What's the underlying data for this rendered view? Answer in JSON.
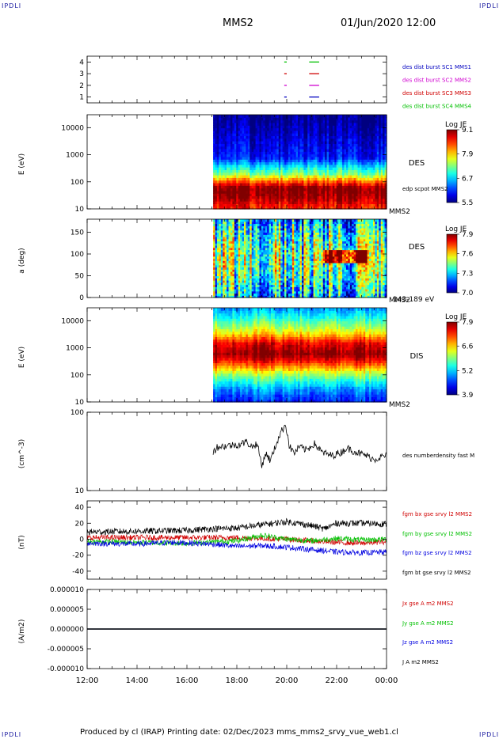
{
  "corner_label": "IPDLI",
  "header": {
    "spacecraft": "MMS2",
    "datetime": "01/Jun/2020 12:00"
  },
  "footer": {
    "text": "Produced by cl (IRAP)   Printing date: 02/Dec/2023   mms_mms2_srvy_vue_web1.cl"
  },
  "colors": {
    "mms1": "#0000c0",
    "mms2": "#d000d0",
    "mms3": "#d00000",
    "mms4": "#00c000",
    "bx": "#d00000",
    "by": "#00c000",
    "bz": "#0000e0",
    "bt": "#000000"
  },
  "chart_data": {
    "type": "stacked-timeseries",
    "x_ticks": [
      "12:00",
      "14:00",
      "16:00",
      "18:00",
      "20:00",
      "22:00",
      "00:00"
    ],
    "xlim_hours": [
      12,
      24
    ],
    "panels": [
      {
        "id": "burst",
        "type": "scatter",
        "y_ticks": [
          "1",
          "2",
          "3",
          "4"
        ],
        "ylim": [
          0.5,
          4.5
        ],
        "legend": [
          "des dist burst SC1 MMS1",
          "des dist burst SC2 MMS2",
          "des dist burst SC3 MMS3",
          "des dist burst SC4 MMS4"
        ],
        "series": [
          {
            "name": "des dist burst SC1 MMS1",
            "level": 1,
            "color": "#0000c0",
            "intervals": [
              [
                19.9,
                20.0
              ],
              [
                20.9,
                21.3
              ]
            ]
          },
          {
            "name": "des dist burst SC2 MMS2",
            "level": 2,
            "color": "#d000d0",
            "intervals": [
              [
                19.9,
                20.0
              ],
              [
                20.9,
                21.3
              ]
            ]
          },
          {
            "name": "des dist burst SC3 MMS3",
            "level": 3,
            "color": "#d00000",
            "intervals": [
              [
                19.9,
                20.0
              ],
              [
                20.9,
                21.3
              ]
            ]
          },
          {
            "name": "des dist burst SC4 MMS4",
            "level": 4,
            "color": "#00c000",
            "intervals": [
              [
                19.9,
                20.0
              ],
              [
                20.9,
                21.3
              ]
            ]
          }
        ]
      },
      {
        "id": "des-energy",
        "type": "heatmap",
        "ylabel": "E (eV)",
        "y_ticks": [
          "10",
          "100",
          "1000",
          "10000"
        ],
        "ylim_log": [
          10,
          30000
        ],
        "data_start_hour": 17.05,
        "label": "DES",
        "sublabel": "edp scpot MMS2",
        "instrument": "MMS2",
        "colorbar": {
          "title": "Log JE",
          "ticks": [
            "9.1",
            "7.9",
            "6.7",
            "5.5"
          ],
          "range": [
            5.5,
            9.1
          ]
        },
        "profile": [
          [
            10,
            8.5
          ],
          [
            30,
            9.0
          ],
          [
            60,
            9.1
          ],
          [
            100,
            8.4
          ],
          [
            200,
            7.3
          ],
          [
            400,
            6.7
          ],
          [
            800,
            6.0
          ],
          [
            30000,
            5.5
          ]
        ]
      },
      {
        "id": "des-pitch",
        "type": "heatmap",
        "ylabel": "a (deg)",
        "y_ticks": [
          "0",
          "50",
          "100",
          "150"
        ],
        "ylim": [
          0,
          180
        ],
        "data_start_hour": 17.05,
        "label": "DES",
        "instrument": "MMS2",
        "energy_band": "143-189 eV",
        "colorbar": {
          "title": "Log JE",
          "ticks": [
            "7.9",
            "7.6",
            "7.3",
            "7.0"
          ],
          "range": [
            7.0,
            7.9
          ]
        }
      },
      {
        "id": "dis-energy",
        "type": "heatmap",
        "ylabel": "E (eV)",
        "y_ticks": [
          "10",
          "100",
          "1000",
          "10000"
        ],
        "ylim_log": [
          10,
          30000
        ],
        "data_start_hour": 17.05,
        "label": "DIS",
        "instrument": "MMS2",
        "colorbar": {
          "title": "Log JE",
          "ticks": [
            "7.9",
            "6.6",
            "5.2",
            "3.9"
          ],
          "range": [
            3.9,
            7.9
          ]
        },
        "profile": [
          [
            10,
            4.5
          ],
          [
            30,
            5.0
          ],
          [
            100,
            6.0
          ],
          [
            300,
            7.3
          ],
          [
            600,
            7.9
          ],
          [
            1500,
            7.5
          ],
          [
            4000,
            6.4
          ],
          [
            12000,
            5.6
          ],
          [
            30000,
            5.0
          ]
        ]
      },
      {
        "id": "density",
        "type": "line",
        "ylabel": "(cm^-3)",
        "y_ticks": [
          "10",
          "100"
        ],
        "ylim_log": [
          10,
          100
        ],
        "legend": [
          "des numberdensity fast M"
        ],
        "series": [
          {
            "name": "des numberdensity fast M",
            "color": "#000000",
            "points": [
              [
                17.05,
                31
              ],
              [
                17.2,
                36
              ],
              [
                17.5,
                37
              ],
              [
                17.8,
                38
              ],
              [
                18.1,
                39
              ],
              [
                18.4,
                42
              ],
              [
                18.6,
                36
              ],
              [
                18.8,
                40
              ],
              [
                19.0,
                20
              ],
              [
                19.15,
                30
              ],
              [
                19.35,
                24
              ],
              [
                19.5,
                33
              ],
              [
                19.8,
                58
              ],
              [
                19.95,
                70
              ],
              [
                20.1,
                37
              ],
              [
                20.3,
                30
              ],
              [
                20.5,
                36
              ],
              [
                20.8,
                33
              ],
              [
                21.1,
                40
              ],
              [
                21.4,
                31
              ],
              [
                21.8,
                28
              ],
              [
                22.2,
                31
              ],
              [
                22.4,
                35
              ],
              [
                22.6,
                33
              ],
              [
                22.9,
                30
              ],
              [
                23.2,
                28
              ],
              [
                23.5,
                25
              ],
              [
                23.8,
                27
              ],
              [
                24.0,
                28
              ]
            ]
          }
        ]
      },
      {
        "id": "fgm",
        "type": "line",
        "ylabel": "(nT)",
        "y_ticks": [
          "-40",
          "-20",
          "0",
          "20",
          "40"
        ],
        "ylim": [
          -50,
          48
        ],
        "legend": [
          "fgm bx gse srvy l2 MMS2",
          "fgm by gse srvy l2 MMS2",
          "fgm bz gse srvy l2 MMS2",
          "fgm bt gse srvy l2 MMS2"
        ],
        "series": [
          {
            "name": "fgm bx gse srvy l2 MMS2",
            "color": "#d00000",
            "points": [
              [
                12,
                2
              ],
              [
                15,
                2
              ],
              [
                18,
                2
              ],
              [
                19,
                1
              ],
              [
                20,
                0
              ],
              [
                21,
                -2
              ],
              [
                22,
                -4
              ],
              [
                23,
                -5
              ],
              [
                24,
                -3
              ]
            ]
          },
          {
            "name": "fgm by gse srvy l2 MMS2",
            "color": "#00c000",
            "points": [
              [
                12,
                -3
              ],
              [
                14,
                -4
              ],
              [
                16,
                -5
              ],
              [
                18,
                -2
              ],
              [
                19,
                5
              ],
              [
                20,
                0
              ],
              [
                21,
                -2
              ],
              [
                22,
                1
              ],
              [
                23,
                -1
              ],
              [
                24,
                0
              ]
            ]
          },
          {
            "name": "fgm bz gse srvy l2 MMS2",
            "color": "#0000e0",
            "points": [
              [
                12,
                -5
              ],
              [
                14,
                -6
              ],
              [
                15.5,
                -4
              ],
              [
                17,
                -6
              ],
              [
                18,
                -9
              ],
              [
                19,
                -8
              ],
              [
                20,
                -10
              ],
              [
                21,
                -13
              ],
              [
                22,
                -16
              ],
              [
                23,
                -17
              ],
              [
                24,
                -16
              ]
            ]
          },
          {
            "name": "fgm bt gse srvy l2 MMS2",
            "color": "#000000",
            "points": [
              [
                12,
                9
              ],
              [
                14,
                10
              ],
              [
                16,
                11
              ],
              [
                17,
                13
              ],
              [
                18,
                14
              ],
              [
                19,
                18
              ],
              [
                20,
                22
              ],
              [
                21,
                17
              ],
              [
                21.5,
                13
              ],
              [
                22,
                20
              ],
              [
                23,
                20
              ],
              [
                24,
                19
              ]
            ]
          }
        ]
      },
      {
        "id": "current",
        "type": "line",
        "ylabel": "(A/m2)",
        "y_ticks": [
          "-0.000010",
          "-0.000005",
          "0.000000",
          "0.000005",
          "0.000010"
        ],
        "ylim": [
          -1e-05,
          1e-05
        ],
        "legend": [
          "Jx gse A m2 MMS2",
          "Jy gse A m2 MMS2",
          "Jz gse A m2 MMS2",
          "J A m2 MMS2"
        ],
        "series": [
          {
            "name": "Jx gse A m2 MMS2",
            "color": "#d00000",
            "points": [
              [
                12,
                0
              ],
              [
                24,
                0
              ]
            ]
          },
          {
            "name": "Jy gse A m2 MMS2",
            "color": "#00c000",
            "points": [
              [
                12,
                0
              ],
              [
                24,
                0
              ]
            ]
          },
          {
            "name": "Jz gse A m2 MMS2",
            "color": "#0000e0",
            "points": [
              [
                12,
                0
              ],
              [
                24,
                0
              ]
            ]
          },
          {
            "name": "J A m2 MMS2",
            "color": "#000000",
            "points": [
              [
                12,
                0
              ],
              [
                24,
                0
              ]
            ]
          }
        ]
      }
    ]
  }
}
